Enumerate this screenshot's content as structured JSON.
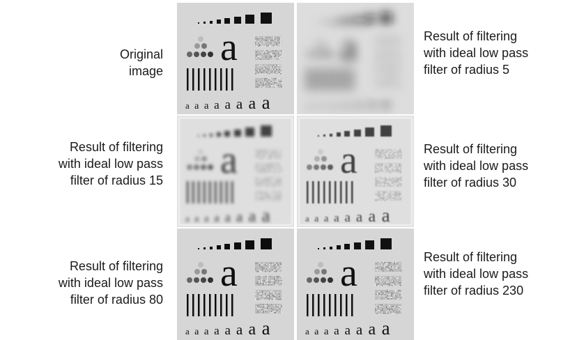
{
  "captions": {
    "original": [
      "Original",
      "image"
    ],
    "r5": [
      "Result of filtering",
      "with ideal low pass",
      "filter of radius 5"
    ],
    "r15": [
      "Result of filtering",
      "with ideal low pass",
      "filter of radius 15"
    ],
    "r30": [
      "Result of filtering",
      "with ideal low pass",
      "filter of radius 30"
    ],
    "r80": [
      "Result of filtering",
      "with ideal low pass",
      "filter of radius 80"
    ],
    "r230": [
      "Result of filtering",
      "with ideal low pass",
      "filter of radius 230"
    ]
  },
  "panels": [
    {
      "id": "original",
      "glyph": "a",
      "small_glyph": "a",
      "blur": 0,
      "ringing": false
    },
    {
      "id": "r5",
      "glyph": "a",
      "small_glyph": "a",
      "blur": 7,
      "ringing": false
    },
    {
      "id": "r15",
      "glyph": "a",
      "small_glyph": "a",
      "blur": 2.2,
      "ringing": true
    },
    {
      "id": "r30",
      "glyph": "a",
      "small_glyph": "a",
      "blur": 0.9,
      "ringing": true
    },
    {
      "id": "r80",
      "glyph": "a",
      "small_glyph": "a",
      "blur": 0.3,
      "ringing": false
    },
    {
      "id": "r230",
      "glyph": "a",
      "small_glyph": "a",
      "blur": 0,
      "ringing": false
    }
  ],
  "colors": {
    "panel_bg": "#d6d6d6",
    "ink": "#111111",
    "gray_dot": "#8a8a8a",
    "light_dot": "#bdbdbd"
  }
}
